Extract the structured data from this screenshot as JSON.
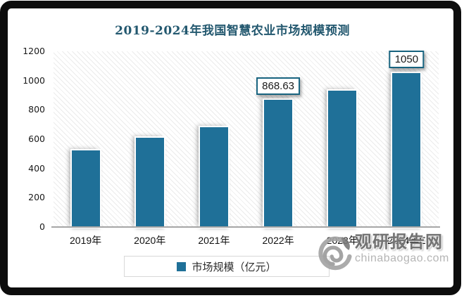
{
  "chart_data": {
    "type": "bar",
    "title": "2019-2024年我国智慧农业市场规模预测",
    "categories": [
      "2019年",
      "2020年",
      "2021年",
      "2022年",
      "2023年",
      "2024年E"
    ],
    "series": [
      {
        "name": "市场规模（亿元）",
        "values": [
          525,
          612,
          680,
          868.63,
          930,
          1050
        ]
      }
    ],
    "value_labels": [
      {
        "category": "2022年",
        "text": "868.63"
      },
      {
        "category": "2024年E",
        "text": "1050"
      }
    ],
    "ylim": [
      0,
      1200
    ],
    "yticks": [
      0,
      200,
      400,
      600,
      800,
      1000,
      1200
    ],
    "grid": false,
    "legend_position": "bottom",
    "bar_color": "#1F7098",
    "title_color": "#23586F",
    "label_box_border_color": "#17637F"
  },
  "legend": {
    "label": "市场规模（亿元）"
  },
  "watermark": {
    "logo_icon": "guanyan-swirl-logo",
    "name": "观研报告网",
    "url": "chinabaogao.com"
  }
}
